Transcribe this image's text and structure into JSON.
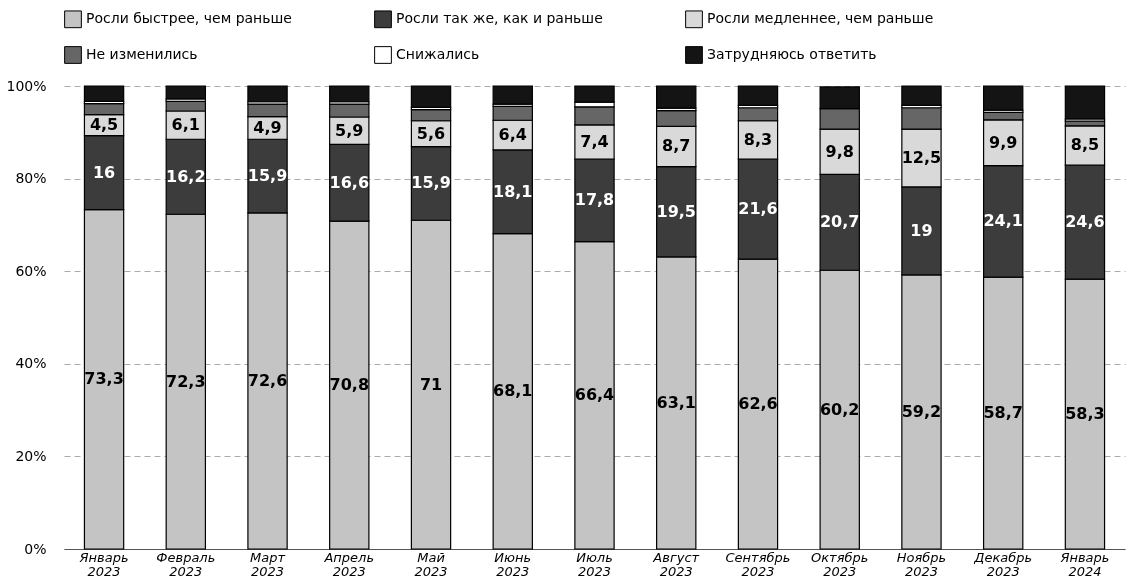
{
  "chart_data": {
    "type": "bar",
    "stacked": true,
    "legend": "top",
    "grid": "y",
    "categories": [
      "Январь 2023",
      "Февраль 2023",
      "Март 2023",
      "Апрель 2023",
      "Май 2023",
      "Июнь 2023",
      "Июль 2023",
      "Август 2023",
      "Сентябрь 2023",
      "Октябрь 2023",
      "Ноябрь 2023",
      "Декабрь 2023",
      "Январь 2024"
    ],
    "ylim": [
      0,
      100
    ],
    "yticks": [
      {
        "value": 0,
        "label": "0%"
      },
      {
        "value": 20,
        "label": "20%"
      },
      {
        "value": 40,
        "label": "40%"
      },
      {
        "value": 60,
        "label": "60%"
      },
      {
        "value": 80,
        "label": "80%"
      },
      {
        "value": 100,
        "label": "100%"
      }
    ],
    "series": [
      {
        "name": "Росли быстрее, чем раньше",
        "color": "#c4c4c4",
        "values": [
          73.3,
          72.3,
          72.6,
          70.8,
          71,
          68.1,
          66.4,
          63.1,
          62.6,
          60.2,
          59.2,
          58.7,
          58.3
        ],
        "value_labels": [
          "73,3",
          "72,3",
          "72,6",
          "70,8",
          "71",
          "68,1",
          "66,4",
          "63,1",
          "62,6",
          "60,2",
          "59,2",
          "58,7",
          "58,3"
        ]
      },
      {
        "name": "Росли так же, как и раньше",
        "color": "#3c3c3c",
        "values": [
          16,
          16.2,
          15.9,
          16.6,
          15.9,
          18.1,
          17.8,
          19.5,
          21.6,
          20.7,
          19,
          24.1,
          24.6
        ],
        "value_labels": [
          "16",
          "16,2",
          "15,9",
          "16,6",
          "15,9",
          "18,1",
          "17,8",
          "19,5",
          "21,6",
          "20,7",
          "19",
          "24,1",
          "24,6"
        ]
      },
      {
        "name": "Росли медленнее, чем раньше",
        "color": "#d9d9d9",
        "values": [
          4.5,
          6.1,
          4.9,
          5.9,
          5.6,
          6.4,
          7.4,
          8.7,
          8.3,
          9.8,
          12.5,
          9.9,
          8.5
        ],
        "value_labels": [
          "4,5",
          "6,1",
          "4,9",
          "5,9",
          "5,6",
          "6,4",
          "7,4",
          "8,7",
          "8,3",
          "9,8",
          "12,5",
          "9,9",
          "8,5"
        ]
      },
      {
        "name": "Не изменились",
        "color": "#666666",
        "values": [
          2.4,
          2.1,
          2.7,
          2.8,
          2.4,
          3.0,
          3.9,
          3.4,
          2.8,
          4.4,
          4.6,
          1.6,
          1.0
        ]
      },
      {
        "name": "Снижались",
        "color": "#ffffff",
        "values": [
          0.5,
          0.5,
          0.5,
          0.5,
          0.5,
          0.5,
          1.0,
          0.5,
          0.5,
          null,
          0.5,
          0.5,
          0.5
        ]
      },
      {
        "name": "Затрудняюсь ответить",
        "color": "#141414",
        "values": [
          3.3,
          2.8,
          3.4,
          3.4,
          4.6,
          3.9,
          3.5,
          4.8,
          4.2,
          4.7,
          4.2,
          5.2,
          7.1
        ]
      }
    ]
  }
}
